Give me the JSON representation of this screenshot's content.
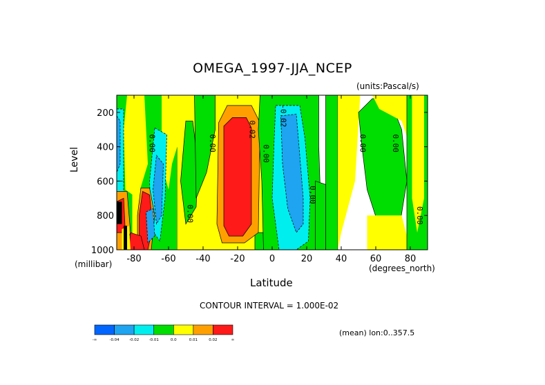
{
  "chart_data": {
    "type": "heatmap",
    "title": "OMEGA_1997-JJA_NCEP",
    "units_label": "(units:Pascal/s)",
    "xlabel": "Latitude",
    "x_unit_label": "(degrees_north)",
    "ylabel": "Level",
    "y_unit_label": "(millibar)",
    "contour_interval_label": "CONTOUR INTERVAL = 1.000E-02",
    "mean_label": "(mean) lon:0..357.5",
    "xlim": [
      -90,
      90
    ],
    "ylim": [
      1000,
      100
    ],
    "x_ticks": [
      -80,
      -60,
      -40,
      -20,
      0,
      20,
      40,
      60,
      80
    ],
    "x_tick_labels": [
      "-80",
      "-60",
      "-40",
      "-20",
      "0",
      "20",
      "40",
      "60",
      "80"
    ],
    "y_ticks": [
      200,
      400,
      600,
      800,
      1000
    ],
    "y_tick_labels": [
      "200",
      "400",
      "600",
      "800",
      "1000"
    ],
    "colorbar": {
      "colors": [
        "#0066ff",
        "#1ea4f0",
        "#00eeee",
        "#00dd00",
        "#ffff00",
        "#ffa000",
        "#ff1a1a"
      ],
      "tick_labels": [
        "-∞",
        "-0.04",
        "-0.02",
        "-0.01",
        "0.0",
        "0.01",
        "0.02",
        "∞"
      ]
    },
    "contour_labels": [
      {
        "text": "0.00",
        "lat": -71,
        "lev": 380
      },
      {
        "text": "0.00",
        "lat": -36,
        "lev": 380
      },
      {
        "text": "0.02",
        "lat": -13,
        "lev": 300
      },
      {
        "text": "0.00",
        "lat": -5,
        "lev": 440
      },
      {
        "text": "-0.02",
        "lat": 5,
        "lev": 220
      },
      {
        "text": "0.00",
        "lat": 51,
        "lev": 380
      },
      {
        "text": "0.00",
        "lat": 70,
        "lev": 380
      },
      {
        "text": "0.00",
        "lat": -49,
        "lev": 790
      },
      {
        "text": "0.00",
        "lat": 22,
        "lev": 680
      },
      {
        "text": "0.00",
        "lat": 84,
        "lev": 800
      }
    ],
    "regions": [
      {
        "category": 3,
        "lon_lat_lev": [
          [
            -90,
            100
          ],
          [
            -55,
            100
          ],
          [
            -55,
            1000
          ],
          [
            -90,
            1000
          ]
        ]
      },
      {
        "category": 4,
        "lon_lat_lev": [
          [
            -84,
            100
          ],
          [
            -74,
            100
          ],
          [
            -72,
            500
          ],
          [
            -78,
            700
          ],
          [
            -85,
            650
          ],
          [
            -86,
            300
          ]
        ]
      },
      {
        "category": 4,
        "lon_lat_lev": [
          [
            -64,
            100
          ],
          [
            -55,
            100
          ],
          [
            -52,
            300
          ],
          [
            -58,
            500
          ],
          [
            -60,
            650
          ],
          [
            -64,
            500
          ]
        ]
      },
      {
        "category": 4,
        "lon_lat_lev": [
          [
            -55,
            100
          ],
          [
            0,
            100
          ],
          [
            0,
            1000
          ],
          [
            -55,
            1000
          ]
        ]
      },
      {
        "category": 3,
        "lon_lat_lev": [
          [
            -50,
            250
          ],
          [
            -46,
            250
          ],
          [
            -43,
            500
          ],
          [
            -44,
            750
          ],
          [
            -50,
            850
          ],
          [
            -53,
            600
          ]
        ]
      },
      {
        "category": 3,
        "lon_lat_lev": [
          [
            -45,
            100
          ],
          [
            -33,
            100
          ],
          [
            -33,
            300
          ],
          [
            -38,
            550
          ],
          [
            -44,
            700
          ]
        ]
      },
      {
        "category": 3,
        "lon_lat_lev": [
          [
            -10,
            900
          ],
          [
            0,
            900
          ],
          [
            0,
            1000
          ],
          [
            -10,
            1000
          ]
        ]
      },
      {
        "category": 5,
        "lon_lat_lev": [
          [
            -26,
            160
          ],
          [
            -12,
            160
          ],
          [
            -7,
            260
          ],
          [
            -8,
            900
          ],
          [
            -16,
            960
          ],
          [
            -29,
            960
          ],
          [
            -32,
            850
          ],
          [
            -31,
            260
          ]
        ]
      },
      {
        "category": 6,
        "lon_lat_lev": [
          [
            -23,
            230
          ],
          [
            -15,
            230
          ],
          [
            -12,
            290
          ],
          [
            -12,
            850
          ],
          [
            -17,
            920
          ],
          [
            -25,
            920
          ],
          [
            -28,
            860
          ],
          [
            -28,
            280
          ]
        ]
      },
      {
        "category": 3,
        "lon_lat_lev": [
          [
            -7,
            100
          ],
          [
            27,
            100
          ],
          [
            27,
            400
          ],
          [
            28,
            700
          ],
          [
            25,
            1000
          ],
          [
            -5,
            1000
          ],
          [
            -6,
            600
          ],
          [
            -8,
            300
          ]
        ]
      },
      {
        "category": 2,
        "lon_lat_lev": [
          [
            2,
            160
          ],
          [
            16,
            160
          ],
          [
            19,
            350
          ],
          [
            22,
            700
          ],
          [
            21,
            950
          ],
          [
            14,
            1000
          ],
          [
            4,
            1000
          ],
          [
            0,
            700
          ],
          [
            1,
            400
          ]
        ]
      },
      {
        "category": 1,
        "lon_lat_lev": [
          [
            5,
            220
          ],
          [
            14,
            210
          ],
          [
            16,
            450
          ],
          [
            18,
            700
          ],
          [
            18,
            850
          ],
          [
            14,
            900
          ],
          [
            9,
            760
          ],
          [
            6,
            500
          ]
        ]
      },
      {
        "category": 3,
        "lon_lat_lev": [
          [
            31,
            100
          ],
          [
            38,
            100
          ],
          [
            38,
            1000
          ],
          [
            31,
            1000
          ]
        ]
      },
      {
        "category": 3,
        "lon_lat_lev": [
          [
            25,
            600
          ],
          [
            31,
            620
          ],
          [
            31,
            1000
          ],
          [
            25,
            1000
          ]
        ]
      },
      {
        "category": 4,
        "lon_lat_lev": [
          [
            38,
            100
          ],
          [
            51,
            100
          ],
          [
            48,
            600
          ],
          [
            40,
            900
          ],
          [
            38,
            1000
          ]
        ]
      },
      {
        "category": 3,
        "lon_lat_lev": [
          [
            50,
            200
          ],
          [
            58,
            120
          ],
          [
            68,
            120
          ],
          [
            75,
            300
          ],
          [
            78,
            600
          ],
          [
            74,
            850
          ],
          [
            63,
            900
          ],
          [
            55,
            650
          ],
          [
            52,
            400
          ]
        ]
      },
      {
        "category": 4,
        "lon_lat_lev": [
          [
            58,
            100
          ],
          [
            80,
            100
          ],
          [
            80,
            400
          ],
          [
            75,
            250
          ],
          [
            62,
            180
          ]
        ]
      },
      {
        "category": 4,
        "lon_lat_lev": [
          [
            55,
            800
          ],
          [
            75,
            800
          ],
          [
            80,
            1000
          ],
          [
            55,
            1000
          ]
        ]
      },
      {
        "category": 3,
        "lon_lat_lev": [
          [
            78,
            100
          ],
          [
            90,
            100
          ],
          [
            90,
            1000
          ],
          [
            78,
            1000
          ]
        ]
      },
      {
        "category": 4,
        "lon_lat_lev": [
          [
            81,
            100
          ],
          [
            88,
            100
          ],
          [
            88,
            700
          ],
          [
            84,
            900
          ],
          [
            81,
            700
          ]
        ]
      },
      {
        "category": 2,
        "lon_lat_lev": [
          [
            -90,
            180
          ],
          [
            -86,
            180
          ],
          [
            -86,
            600
          ],
          [
            -90,
            600
          ]
        ]
      },
      {
        "category": 1,
        "lon_lat_lev": [
          [
            -90,
            220
          ],
          [
            -88,
            250
          ],
          [
            -88,
            500
          ],
          [
            -90,
            550
          ]
        ]
      },
      {
        "category": 2,
        "lon_lat_lev": [
          [
            -68,
            290
          ],
          [
            -61,
            330
          ],
          [
            -62,
            700
          ],
          [
            -65,
            950
          ],
          [
            -70,
            880
          ],
          [
            -71,
            600
          ]
        ]
      },
      {
        "category": 1,
        "lon_lat_lev": [
          [
            -67,
            450
          ],
          [
            -63,
            500
          ],
          [
            -64,
            800
          ],
          [
            -67,
            850
          ],
          [
            -69,
            650
          ]
        ]
      },
      {
        "category": 2,
        "lon_lat_lev": [
          [
            -90,
            600
          ],
          [
            -86,
            600
          ],
          [
            -86,
            680
          ],
          [
            -90,
            680
          ]
        ]
      },
      {
        "category": 5,
        "lon_lat_lev": [
          [
            -90,
            660
          ],
          [
            -84,
            660
          ],
          [
            -82,
            900
          ],
          [
            -86,
            1000
          ],
          [
            -90,
            1000
          ]
        ]
      },
      {
        "category": 6,
        "lon_lat_lev": [
          [
            -90,
            720
          ],
          [
            -86,
            700
          ],
          [
            -85,
            900
          ],
          [
            -90,
            900
          ]
        ]
      },
      {
        "category": 4,
        "lon_lat_lev": [
          [
            -81,
            650
          ],
          [
            -76,
            650
          ],
          [
            -72,
            800
          ],
          [
            -76,
            960
          ],
          [
            -81,
            900
          ]
        ]
      },
      {
        "category": 5,
        "lon_lat_lev": [
          [
            -76,
            640
          ],
          [
            -71,
            640
          ],
          [
            -68,
            800
          ],
          [
            -70,
            1000
          ],
          [
            -78,
            1000
          ],
          [
            -78,
            800
          ]
        ]
      },
      {
        "category": 6,
        "lon_lat_lev": [
          [
            -75,
            660
          ],
          [
            -71,
            680
          ],
          [
            -69,
            860
          ],
          [
            -72,
            1000
          ],
          [
            -77,
            1000
          ],
          [
            -77,
            800
          ]
        ]
      },
      {
        "category": 6,
        "lon_lat_lev": [
          [
            -82,
            900
          ],
          [
            -76,
            920
          ],
          [
            -74,
            1000
          ],
          [
            -83,
            1000
          ]
        ]
      },
      {
        "category": 1,
        "lon_lat_lev": [
          [
            -73,
            780
          ],
          [
            -69,
            760
          ],
          [
            -68,
            920
          ],
          [
            -72,
            960
          ]
        ]
      },
      {
        "category": 4,
        "lon_lat_lev": [
          [
            -87,
            880
          ],
          [
            -83,
            860
          ],
          [
            -82,
            1000
          ],
          [
            -87,
            1000
          ]
        ]
      }
    ],
    "masked_regions": [
      {
        "lon_lat_lev": [
          [
            -90,
            720
          ],
          [
            -87,
            720
          ],
          [
            -87,
            850
          ],
          [
            -90,
            850
          ]
        ]
      },
      {
        "lon_lat_lev": [
          [
            -86,
            860
          ],
          [
            -84,
            860
          ],
          [
            -84,
            1000
          ],
          [
            -86,
            1000
          ]
        ]
      }
    ]
  }
}
